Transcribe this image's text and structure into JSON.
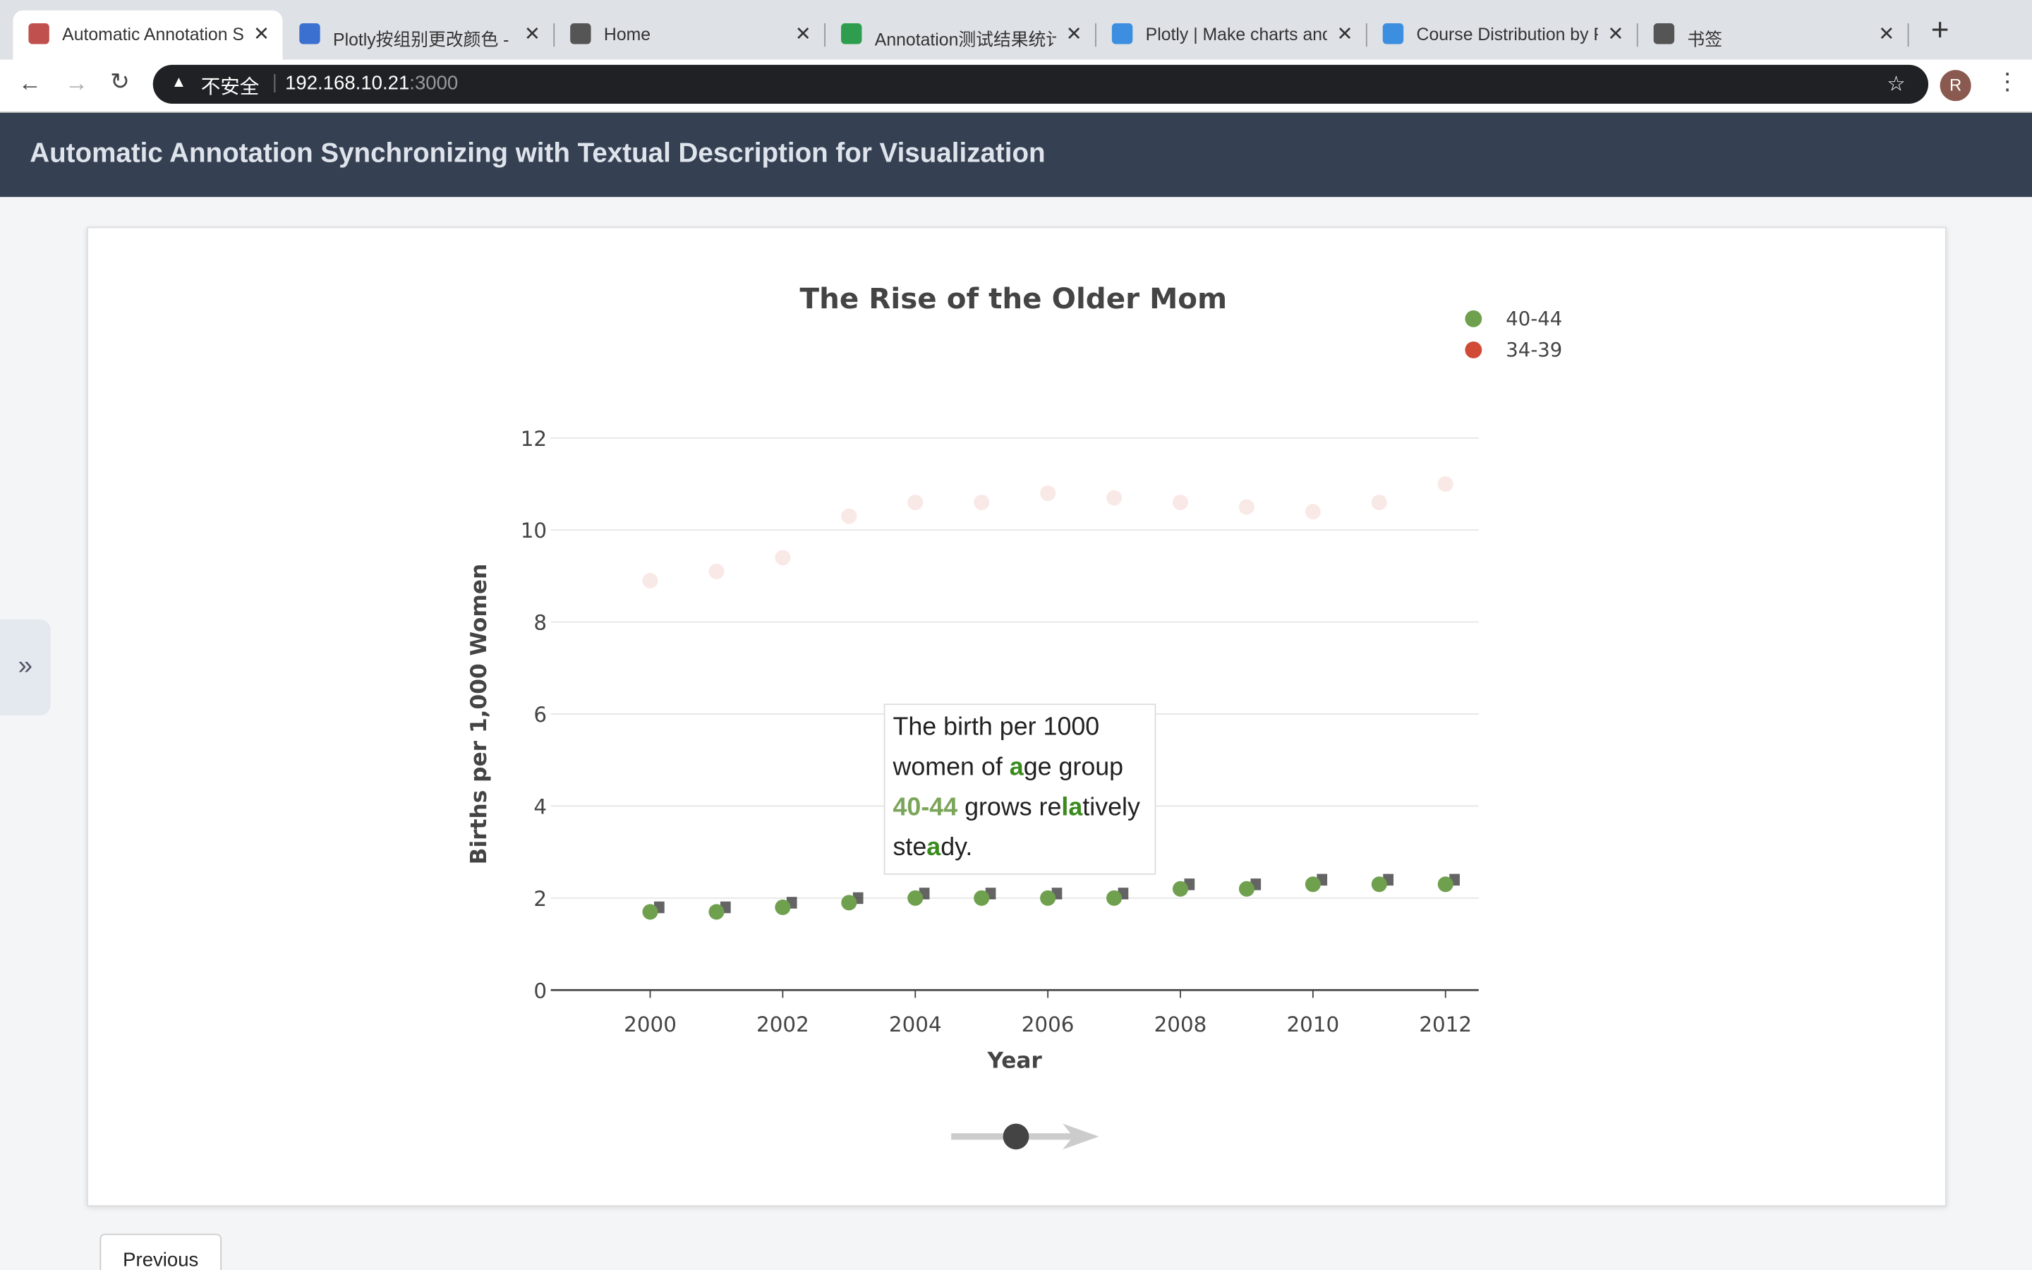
{
  "browser": {
    "tabs": [
      "Automatic Annotation S",
      "Plotly按组别更改颜色 -",
      "Home",
      "Annotation测试结果统计",
      "Plotly | Make charts and",
      "Course Distribution by F",
      "书签"
    ],
    "security": "不安全",
    "url_host": "192.168.10.21",
    "url_port": ":3000",
    "avatar": "R"
  },
  "header": {
    "title": "Automatic Annotation Synchronizing with Textual Description for Visualization"
  },
  "chart_data": {
    "type": "scatter",
    "title": "The Rise of the Older Mom",
    "x_label": "Year",
    "y_label": "Births per 1,000 Women",
    "x": [
      2000,
      2001,
      2002,
      2003,
      2004,
      2005,
      2006,
      2007,
      2008,
      2009,
      2010,
      2011,
      2012
    ],
    "series": [
      {
        "name": "40-44",
        "color": "#6fa04e",
        "values": [
          1.7,
          1.7,
          1.8,
          1.9,
          2.0,
          2.0,
          2.0,
          2.0,
          2.2,
          2.2,
          2.3,
          2.3,
          2.3
        ]
      },
      {
        "name": "34-39",
        "color": "#d04a35",
        "values": [
          8.9,
          9.1,
          9.4,
          10.3,
          10.6,
          10.6,
          10.8,
          10.7,
          10.6,
          10.5,
          10.4,
          10.6,
          11.0
        ]
      }
    ],
    "xlim": [
      1998.5,
      2012.5
    ],
    "xticks": [
      2000,
      2002,
      2004,
      2006,
      2008,
      2010,
      2012
    ],
    "ylim": [
      0,
      12
    ],
    "yticks": [
      0,
      2,
      4,
      6,
      8,
      10,
      12
    ],
    "grid": true,
    "legend": "top-right"
  },
  "annotation": {
    "parts": [
      "The birth per 1000 women of ",
      "a",
      "ge group ",
      "40-44",
      " grows re",
      "la",
      "tively ste",
      "a",
      "dy."
    ]
  },
  "buttons": {
    "previous": "Previous"
  }
}
